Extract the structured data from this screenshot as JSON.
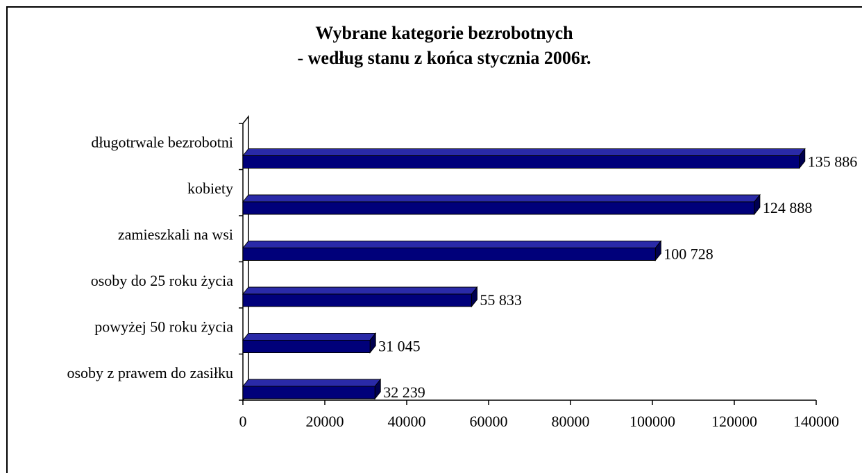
{
  "chart_data": {
    "type": "bar3d-horizontal",
    "title": [
      "Wybrane kategorie bezrobotnych",
      "- według stanu z końca stycznia 2006r."
    ],
    "categories": [
      "długotrwale bezrobotni",
      "kobiety",
      "zamieszkali na wsi",
      "osoby do 25 roku życia",
      "powyżej 50 roku życia",
      "osoby z prawem do zasiłku"
    ],
    "values": [
      135886,
      124888,
      100728,
      55833,
      31045,
      32239
    ],
    "value_labels": [
      "135 886",
      "124 888",
      "100 728",
      "55 833",
      "31 045",
      "32 239"
    ],
    "color": "#00007a",
    "xlim": [
      0,
      140000
    ],
    "xticks": [
      0,
      20000,
      40000,
      60000,
      80000,
      100000,
      120000,
      140000
    ]
  }
}
